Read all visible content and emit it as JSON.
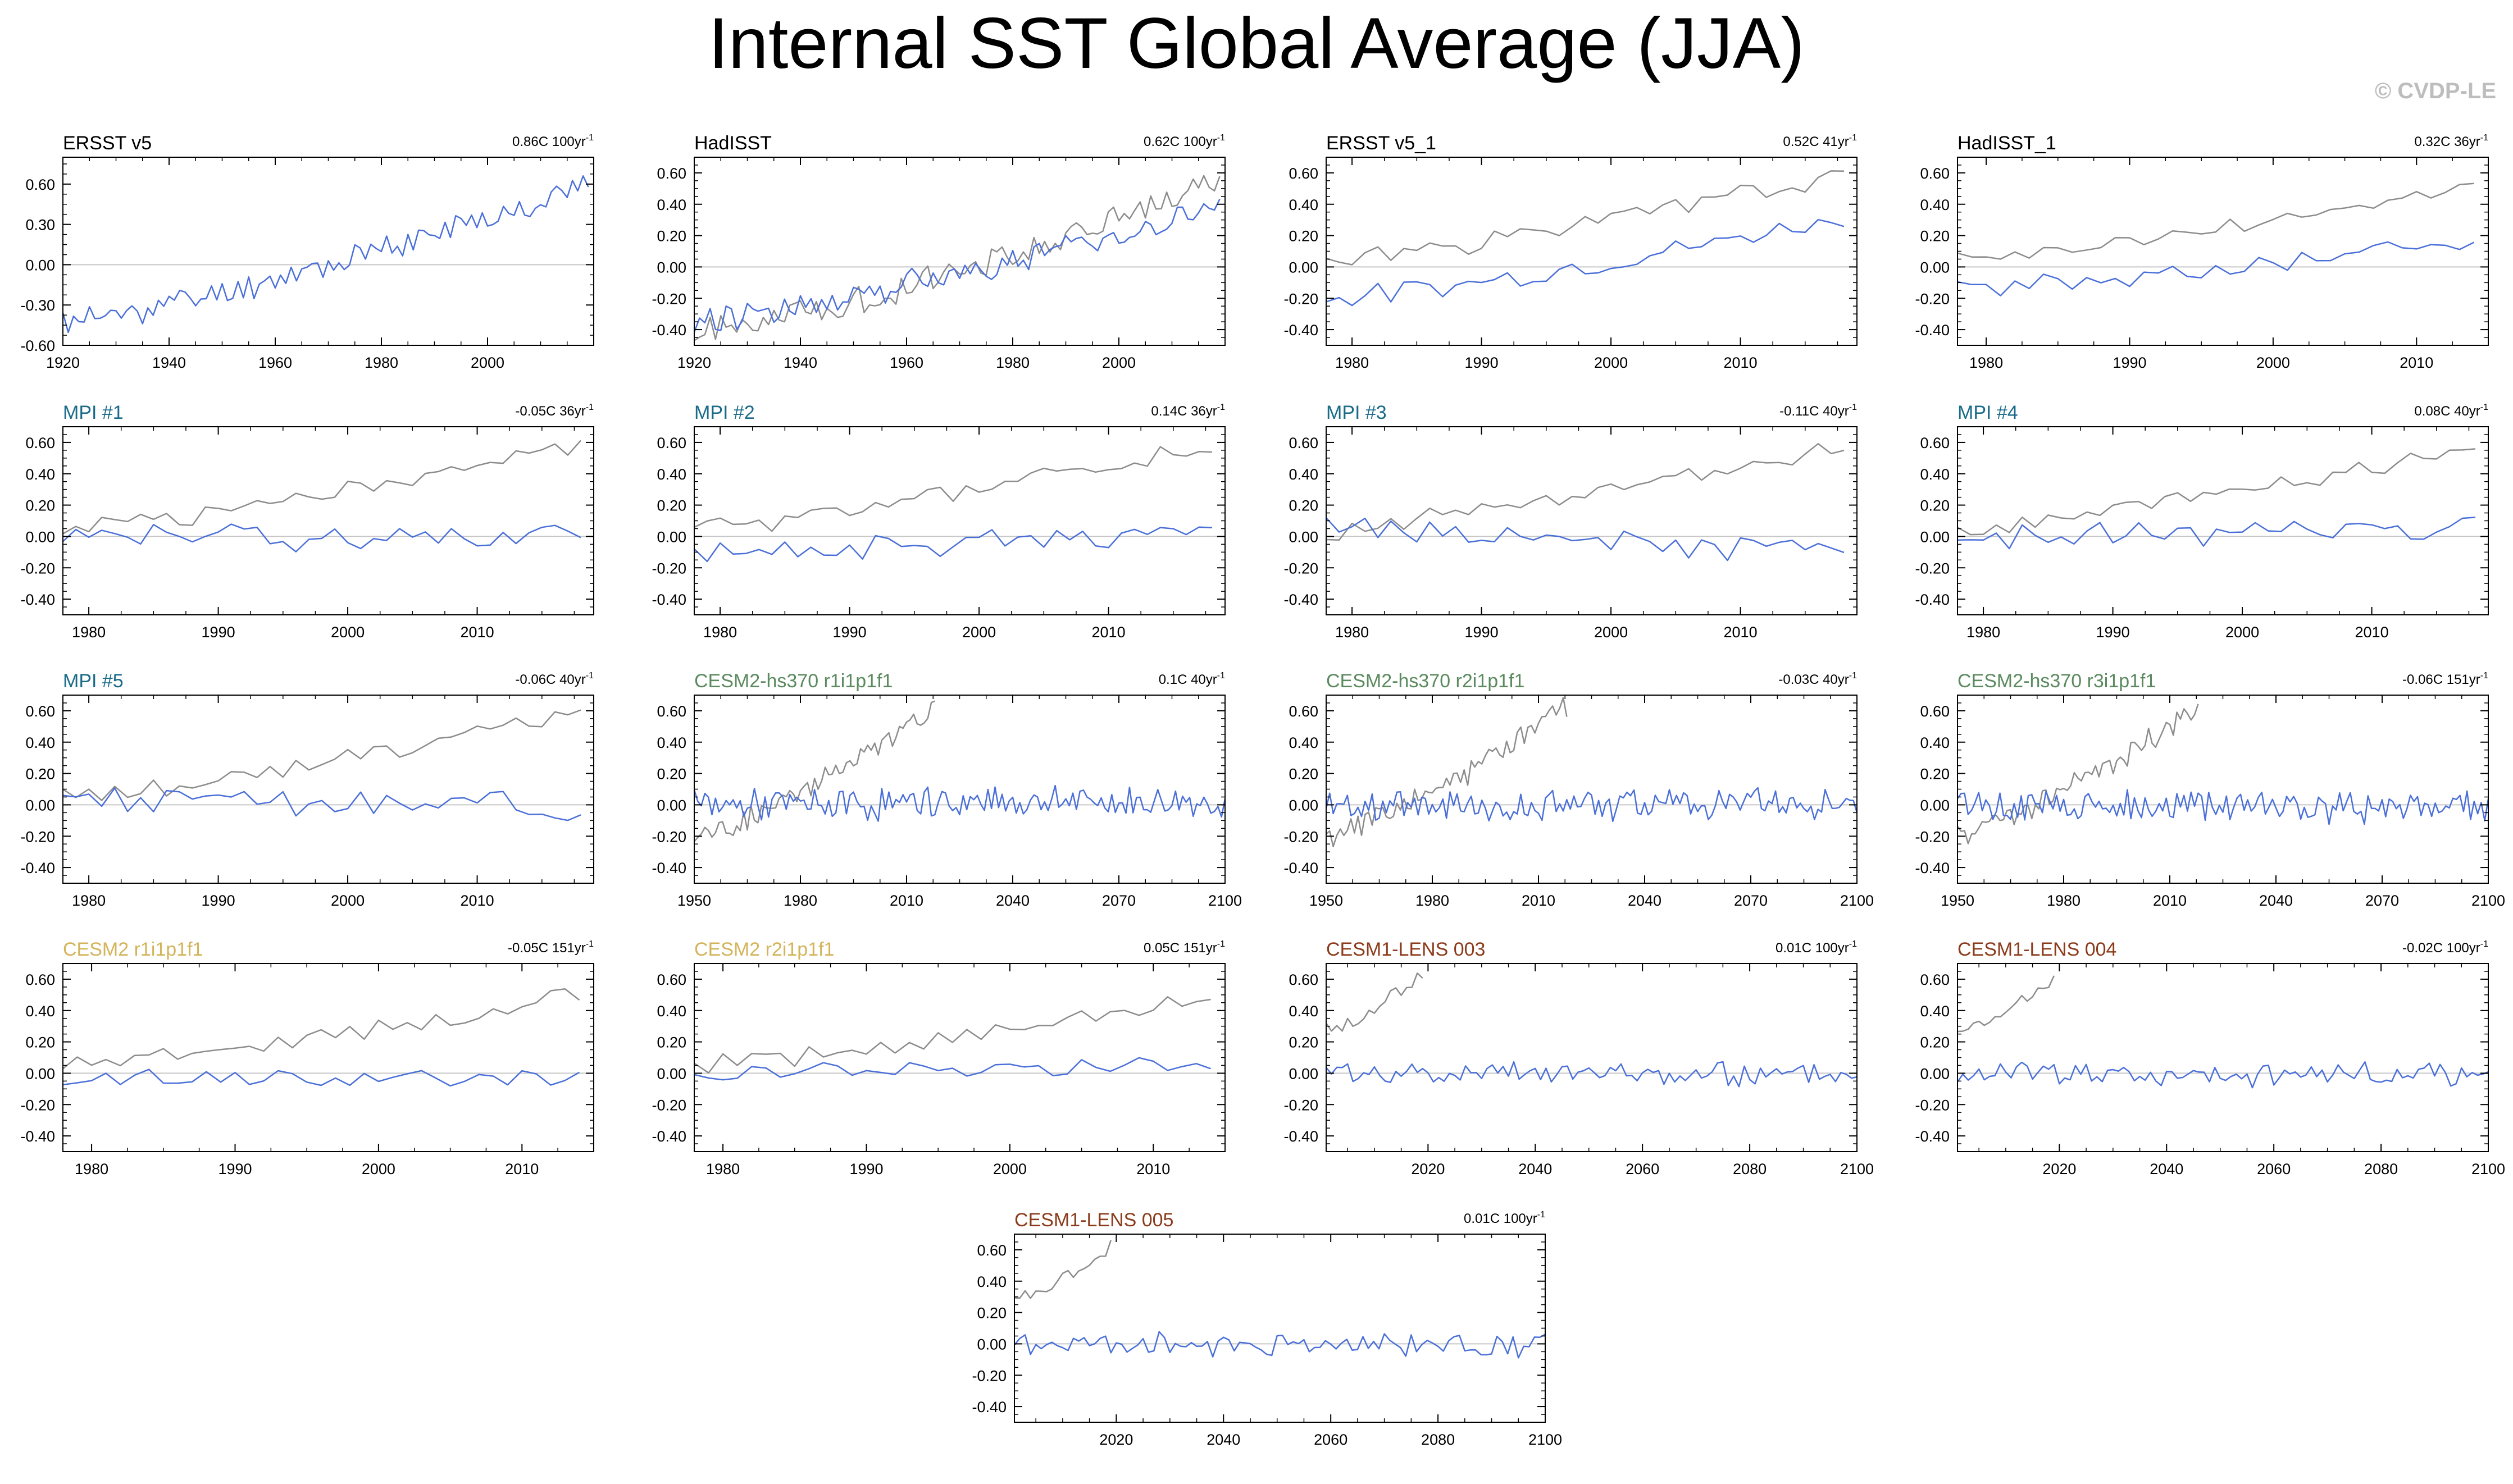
{
  "title": "Internal SST Global Average (JJA)",
  "credit": "© CVDP-LE",
  "colors": {
    "model_line": "#4a6fd8",
    "obs_line": "#8c8c8c",
    "zero_line": "#c8c8c8",
    "mpi_title": "#1a6b8a",
    "cesm2_hs370_title": "#5a8a5e",
    "cesm2_title": "#d4b45a",
    "cesm1_title": "#8b3a1a",
    "obs_title": "#000000"
  },
  "chart_data": [
    {
      "id": "ersst",
      "type": "line",
      "title": "ERSST v5",
      "trend": "0.86C 100yr",
      "trend_sup": "-1",
      "title_color": "#000000",
      "xlim": [
        1920,
        2020
      ],
      "xticks": [
        1920,
        1940,
        1960,
        1980,
        2000
      ],
      "ylim": [
        -0.6,
        0.8
      ],
      "yticks": [
        -0.6,
        -0.3,
        0.0,
        0.3,
        0.6
      ],
      "ytick_labels": [
        "-0.60",
        "-0.30",
        "0.00",
        "0.30",
        "0.60"
      ],
      "series": [
        {
          "color": "model",
          "x": [
            1920,
            2019
          ],
          "shape": "ramp",
          "y0": -0.42,
          "y1": 0.6,
          "noise": 0.09,
          "seed": 11
        }
      ]
    },
    {
      "id": "hadisst",
      "type": "line",
      "title": "HadISST",
      "trend": "0.62C 100yr",
      "trend_sup": "-1",
      "title_color": "#000000",
      "xlim": [
        1920,
        2020
      ],
      "xticks": [
        1920,
        1940,
        1960,
        1980,
        2000
      ],
      "ylim": [
        -0.5,
        0.7
      ],
      "yticks": [
        -0.4,
        -0.2,
        0.0,
        0.2,
        0.4,
        0.6
      ],
      "ytick_labels": [
        "-0.40",
        "-0.20",
        "0.00",
        "0.20",
        "0.40",
        "0.60"
      ],
      "series": [
        {
          "color": "obs",
          "x": [
            1920,
            2019
          ],
          "shape": "ramp",
          "y0": -0.42,
          "y1": 0.55,
          "noise": 0.08,
          "seed": 21
        },
        {
          "color": "model",
          "x": [
            1920,
            2019
          ],
          "shape": "ramp",
          "y0": -0.33,
          "y1": 0.38,
          "noise": 0.08,
          "seed": 22
        }
      ]
    },
    {
      "id": "ersst1",
      "type": "line",
      "title": "ERSST v5_1",
      "trend": "0.52C 41yr",
      "trend_sup": "-1",
      "title_color": "#000000",
      "xlim": [
        1978,
        2019
      ],
      "xticks": [
        1980,
        1990,
        2000,
        2010
      ],
      "ylim": [
        -0.5,
        0.7
      ],
      "yticks": [
        -0.4,
        -0.2,
        0.0,
        0.2,
        0.4,
        0.6
      ],
      "ytick_labels": [
        "-0.40",
        "-0.20",
        "0.00",
        "0.20",
        "0.40",
        "0.60"
      ],
      "series": [
        {
          "color": "obs",
          "x": [
            1978,
            2018
          ],
          "shape": "ramp",
          "y0": 0.05,
          "y1": 0.6,
          "noise": 0.06,
          "seed": 31
        },
        {
          "color": "model",
          "x": [
            1978,
            2018
          ],
          "shape": "ramp",
          "y0": -0.2,
          "y1": 0.32,
          "noise": 0.06,
          "seed": 32
        }
      ]
    },
    {
      "id": "hadisst1",
      "type": "line",
      "title": "HadISST_1",
      "trend": "0.32C 36yr",
      "trend_sup": "-1",
      "title_color": "#000000",
      "xlim": [
        1978,
        2015
      ],
      "xticks": [
        1980,
        1990,
        2000,
        2010
      ],
      "ylim": [
        -0.5,
        0.7
      ],
      "yticks": [
        -0.4,
        -0.2,
        0.0,
        0.2,
        0.4,
        0.6
      ],
      "ytick_labels": [
        "-0.40",
        "-0.20",
        "0.00",
        "0.20",
        "0.40",
        "0.60"
      ],
      "series": [
        {
          "color": "obs",
          "x": [
            1978,
            2014
          ],
          "shape": "ramp",
          "y0": 0.05,
          "y1": 0.52,
          "noise": 0.05,
          "seed": 41
        },
        {
          "color": "model",
          "x": [
            1978,
            2014
          ],
          "shape": "ramp",
          "y0": -0.15,
          "y1": 0.18,
          "noise": 0.06,
          "seed": 42
        }
      ]
    },
    {
      "id": "mpi1",
      "type": "line",
      "title": "MPI #1",
      "trend": "-0.05C 36yr",
      "trend_sup": "-1",
      "title_color": "#1a6b8a",
      "xlim": [
        1978,
        2019
      ],
      "xticks": [
        1980,
        1990,
        2000,
        2010
      ],
      "ylim": [
        -0.5,
        0.7
      ],
      "yticks": [
        -0.4,
        -0.2,
        0.0,
        0.2,
        0.4,
        0.6
      ],
      "ytick_labels": [
        "-0.40",
        "-0.20",
        "0.00",
        "0.20",
        "0.40",
        "0.60"
      ],
      "series": [
        {
          "color": "obs",
          "x": [
            1978,
            2018
          ],
          "shape": "ramp",
          "y0": 0.05,
          "y1": 0.58,
          "noise": 0.06,
          "seed": 51
        },
        {
          "color": "model",
          "x": [
            1978,
            2018
          ],
          "shape": "flat",
          "y0": 0.0,
          "y1": 0.0,
          "noise": 0.08,
          "seed": 52
        }
      ]
    },
    {
      "id": "mpi2",
      "type": "line",
      "title": "MPI #2",
      "trend": "0.14C 36yr",
      "trend_sup": "-1",
      "title_color": "#1a6b8a",
      "xlim": [
        1978,
        2019
      ],
      "xticks": [
        1980,
        1990,
        2000,
        2010
      ],
      "ylim": [
        -0.5,
        0.7
      ],
      "yticks": [
        -0.4,
        -0.2,
        0.0,
        0.2,
        0.4,
        0.6
      ],
      "ytick_labels": [
        "-0.40",
        "-0.20",
        "0.00",
        "0.20",
        "0.40",
        "0.60"
      ],
      "series": [
        {
          "color": "obs",
          "x": [
            1978,
            2018
          ],
          "shape": "ramp",
          "y0": 0.05,
          "y1": 0.58,
          "noise": 0.06,
          "seed": 61
        },
        {
          "color": "model",
          "x": [
            1978,
            2018
          ],
          "shape": "ramp",
          "y0": -0.1,
          "y1": 0.05,
          "noise": 0.07,
          "seed": 62
        }
      ]
    },
    {
      "id": "mpi3",
      "type": "line",
      "title": "MPI #3",
      "trend": "-0.11C 40yr",
      "trend_sup": "-1",
      "title_color": "#1a6b8a",
      "xlim": [
        1978,
        2019
      ],
      "xticks": [
        1980,
        1990,
        2000,
        2010
      ],
      "ylim": [
        -0.5,
        0.7
      ],
      "yticks": [
        -0.4,
        -0.2,
        0.0,
        0.2,
        0.4,
        0.6
      ],
      "ytick_labels": [
        "-0.40",
        "-0.20",
        "0.00",
        "0.20",
        "0.40",
        "0.60"
      ],
      "series": [
        {
          "color": "obs",
          "x": [
            1978,
            2018
          ],
          "shape": "ramp",
          "y0": 0.05,
          "y1": 0.58,
          "noise": 0.06,
          "seed": 71
        },
        {
          "color": "model",
          "x": [
            1978,
            2018
          ],
          "shape": "ramp",
          "y0": 0.05,
          "y1": -0.12,
          "noise": 0.07,
          "seed": 72
        }
      ]
    },
    {
      "id": "mpi4",
      "type": "line",
      "title": "MPI #4",
      "trend": "0.08C 40yr",
      "trend_sup": "-1",
      "title_color": "#1a6b8a",
      "xlim": [
        1978,
        2019
      ],
      "xticks": [
        1980,
        1990,
        2000,
        2010
      ],
      "ylim": [
        -0.5,
        0.7
      ],
      "yticks": [
        -0.4,
        -0.2,
        0.0,
        0.2,
        0.4,
        0.6
      ],
      "ytick_labels": [
        "-0.40",
        "-0.20",
        "0.00",
        "0.20",
        "0.40",
        "0.60"
      ],
      "series": [
        {
          "color": "obs",
          "x": [
            1978,
            2018
          ],
          "shape": "ramp",
          "y0": 0.05,
          "y1": 0.58,
          "noise": 0.06,
          "seed": 81
        },
        {
          "color": "model",
          "x": [
            1978,
            2018
          ],
          "shape": "ramp",
          "y0": 0.0,
          "y1": 0.05,
          "noise": 0.07,
          "seed": 82
        }
      ]
    },
    {
      "id": "mpi5",
      "type": "line",
      "title": "MPI #5",
      "trend": "-0.06C 40yr",
      "trend_sup": "-1",
      "title_color": "#1a6b8a",
      "xlim": [
        1978,
        2019
      ],
      "xticks": [
        1980,
        1990,
        2000,
        2010
      ],
      "ylim": [
        -0.5,
        0.7
      ],
      "yticks": [
        -0.4,
        -0.2,
        0.0,
        0.2,
        0.4,
        0.6
      ],
      "ytick_labels": [
        "-0.40",
        "-0.20",
        "0.00",
        "0.20",
        "0.40",
        "0.60"
      ],
      "series": [
        {
          "color": "obs",
          "x": [
            1978,
            2018
          ],
          "shape": "ramp",
          "y0": 0.05,
          "y1": 0.58,
          "noise": 0.06,
          "seed": 91
        },
        {
          "color": "model",
          "x": [
            1978,
            2018
          ],
          "shape": "flat",
          "y0": 0.03,
          "y1": 0.0,
          "noise": 0.08,
          "seed": 92
        }
      ]
    },
    {
      "id": "hs370a",
      "type": "line",
      "title": "CESM2-hs370 r1i1p1f1",
      "trend": "0.1C 40yr",
      "trend_sup": "-1",
      "title_color": "#5a8a5e",
      "xlim": [
        1950,
        2100
      ],
      "xticks": [
        1950,
        1980,
        2010,
        2040,
        2070,
        2100
      ],
      "ylim": [
        -0.5,
        0.7
      ],
      "yticks": [
        -0.4,
        -0.2,
        0.0,
        0.2,
        0.4,
        0.6
      ],
      "ytick_labels": [
        "-0.40",
        "-0.20",
        "0.00",
        "0.20",
        "0.40",
        "0.60"
      ],
      "series": [
        {
          "color": "obs",
          "x": [
            1950,
            2018
          ],
          "shape": "ramp",
          "y0": -0.2,
          "y1": 0.62,
          "noise": 0.07,
          "seed": 101
        },
        {
          "color": "model",
          "x": [
            1950,
            2100
          ],
          "shape": "flat",
          "y0": 0.0,
          "y1": 0.02,
          "noise": 0.09,
          "seed": 102
        }
      ]
    },
    {
      "id": "hs370b",
      "type": "line",
      "title": "CESM2-hs370 r2i1p1f1",
      "trend": "-0.03C 40yr",
      "trend_sup": "-1",
      "title_color": "#5a8a5e",
      "xlim": [
        1950,
        2100
      ],
      "xticks": [
        1950,
        1980,
        2010,
        2040,
        2070,
        2100
      ],
      "ylim": [
        -0.5,
        0.7
      ],
      "yticks": [
        -0.4,
        -0.2,
        0.0,
        0.2,
        0.4,
        0.6
      ],
      "ytick_labels": [
        "-0.40",
        "-0.20",
        "0.00",
        "0.20",
        "0.40",
        "0.60"
      ],
      "series": [
        {
          "color": "obs",
          "x": [
            1950,
            2018
          ],
          "shape": "ramp",
          "y0": -0.2,
          "y1": 0.62,
          "noise": 0.07,
          "seed": 111
        },
        {
          "color": "model",
          "x": [
            1950,
            2100
          ],
          "shape": "flat",
          "y0": 0.0,
          "y1": 0.0,
          "noise": 0.09,
          "seed": 112
        }
      ]
    },
    {
      "id": "hs370c",
      "type": "line",
      "title": "CESM2-hs370 r3i1p1f1",
      "trend": "-0.06C 151yr",
      "trend_sup": "-1",
      "title_color": "#5a8a5e",
      "xlim": [
        1950,
        2100
      ],
      "xticks": [
        1950,
        1980,
        2010,
        2040,
        2070,
        2100
      ],
      "ylim": [
        -0.5,
        0.7
      ],
      "yticks": [
        -0.4,
        -0.2,
        0.0,
        0.2,
        0.4,
        0.6
      ],
      "ytick_labels": [
        "-0.40",
        "-0.20",
        "0.00",
        "0.20",
        "0.40",
        "0.60"
      ],
      "series": [
        {
          "color": "obs",
          "x": [
            1950,
            2018
          ],
          "shape": "ramp",
          "y0": -0.2,
          "y1": 0.62,
          "noise": 0.07,
          "seed": 121
        },
        {
          "color": "model",
          "x": [
            1950,
            2100
          ],
          "shape": "flat",
          "y0": 0.0,
          "y1": -0.02,
          "noise": 0.09,
          "seed": 122
        }
      ]
    },
    {
      "id": "cesm2a",
      "type": "line",
      "title": "CESM2 r1i1p1f1",
      "trend": "-0.05C 151yr",
      "trend_sup": "-1",
      "title_color": "#d4b45a",
      "xlim": [
        1978,
        2015
      ],
      "xticks": [
        1980,
        1990,
        2000,
        2010
      ],
      "ylim": [
        -0.5,
        0.7
      ],
      "yticks": [
        -0.4,
        -0.2,
        0.0,
        0.2,
        0.4,
        0.6
      ],
      "ytick_labels": [
        "-0.40",
        "-0.20",
        "0.00",
        "0.20",
        "0.40",
        "0.60"
      ],
      "series": [
        {
          "color": "obs",
          "x": [
            1978,
            2014
          ],
          "shape": "ramp",
          "y0": 0.05,
          "y1": 0.5,
          "noise": 0.05,
          "seed": 131
        },
        {
          "color": "model",
          "x": [
            1978,
            2014
          ],
          "shape": "flat",
          "y0": -0.03,
          "y1": -0.03,
          "noise": 0.05,
          "seed": 132
        }
      ]
    },
    {
      "id": "cesm2b",
      "type": "line",
      "title": "CESM2 r2i1p1f1",
      "trend": "0.05C 151yr",
      "trend_sup": "-1",
      "title_color": "#d4b45a",
      "xlim": [
        1978,
        2015
      ],
      "xticks": [
        1980,
        1990,
        2000,
        2010
      ],
      "ylim": [
        -0.5,
        0.7
      ],
      "yticks": [
        -0.4,
        -0.2,
        0.0,
        0.2,
        0.4,
        0.6
      ],
      "ytick_labels": [
        "-0.40",
        "-0.20",
        "0.00",
        "0.20",
        "0.40",
        "0.60"
      ],
      "series": [
        {
          "color": "obs",
          "x": [
            1978,
            2014
          ],
          "shape": "ramp",
          "y0": 0.05,
          "y1": 0.5,
          "noise": 0.05,
          "seed": 141
        },
        {
          "color": "model",
          "x": [
            1978,
            2014
          ],
          "shape": "flat",
          "y0": 0.0,
          "y1": 0.06,
          "noise": 0.05,
          "seed": 142
        }
      ]
    },
    {
      "id": "lens003",
      "type": "line",
      "title": "CESM1-LENS 003",
      "trend": "0.01C 100yr",
      "trend_sup": "-1",
      "title_color": "#8b3a1a",
      "xlim": [
        2001,
        2100
      ],
      "xticks": [
        2020,
        2040,
        2060,
        2080,
        2100
      ],
      "ylim": [
        -0.5,
        0.7
      ],
      "yticks": [
        -0.4,
        -0.2,
        0.0,
        0.2,
        0.4,
        0.6
      ],
      "ytick_labels": [
        "-0.40",
        "-0.20",
        "0.00",
        "0.20",
        "0.40",
        "0.60"
      ],
      "series": [
        {
          "color": "obs",
          "x": [
            2001,
            2019
          ],
          "shape": "ramp",
          "y0": 0.28,
          "y1": 0.62,
          "noise": 0.04,
          "seed": 151
        },
        {
          "color": "model",
          "x": [
            2001,
            2100
          ],
          "shape": "flat",
          "y0": 0.0,
          "y1": 0.0,
          "noise": 0.07,
          "seed": 152
        }
      ]
    },
    {
      "id": "lens004",
      "type": "line",
      "title": "CESM1-LENS 004",
      "trend": "-0.02C 100yr",
      "trend_sup": "-1",
      "title_color": "#8b3a1a",
      "xlim": [
        2001,
        2100
      ],
      "xticks": [
        2020,
        2040,
        2060,
        2080,
        2100
      ],
      "ylim": [
        -0.5,
        0.7
      ],
      "yticks": [
        -0.4,
        -0.2,
        0.0,
        0.2,
        0.4,
        0.6
      ],
      "ytick_labels": [
        "-0.40",
        "-0.20",
        "0.00",
        "0.20",
        "0.40",
        "0.60"
      ],
      "series": [
        {
          "color": "obs",
          "x": [
            2001,
            2019
          ],
          "shape": "ramp",
          "y0": 0.28,
          "y1": 0.62,
          "noise": 0.04,
          "seed": 161
        },
        {
          "color": "model",
          "x": [
            2001,
            2100
          ],
          "shape": "flat",
          "y0": 0.0,
          "y1": -0.01,
          "noise": 0.07,
          "seed": 162
        }
      ]
    },
    {
      "id": "lens005",
      "type": "line",
      "title": "CESM1-LENS 005",
      "trend": "0.01C 100yr",
      "trend_sup": "-1",
      "title_color": "#8b3a1a",
      "xlim": [
        2001,
        2100
      ],
      "xticks": [
        2020,
        2040,
        2060,
        2080,
        2100
      ],
      "ylim": [
        -0.5,
        0.7
      ],
      "yticks": [
        -0.4,
        -0.2,
        0.0,
        0.2,
        0.4,
        0.6
      ],
      "ytick_labels": [
        "-0.40",
        "-0.20",
        "0.00",
        "0.20",
        "0.40",
        "0.60"
      ],
      "series": [
        {
          "color": "obs",
          "x": [
            2001,
            2019
          ],
          "shape": "ramp",
          "y0": 0.28,
          "y1": 0.62,
          "noise": 0.04,
          "seed": 171
        },
        {
          "color": "model",
          "x": [
            2001,
            2100
          ],
          "shape": "flat",
          "y0": 0.0,
          "y1": 0.0,
          "noise": 0.07,
          "seed": 172
        }
      ]
    }
  ]
}
